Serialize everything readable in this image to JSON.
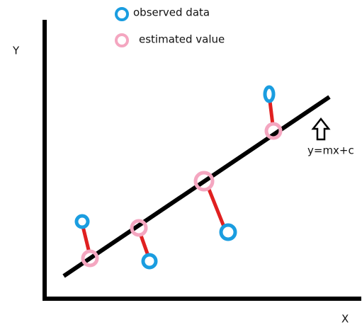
{
  "legend": [
    {
      "label": "observed data"
    },
    {
      "label": "estimated value"
    }
  ],
  "axes": {
    "y_label": "Y",
    "x_label": "X"
  },
  "line_label": "y=mx+c"
}
